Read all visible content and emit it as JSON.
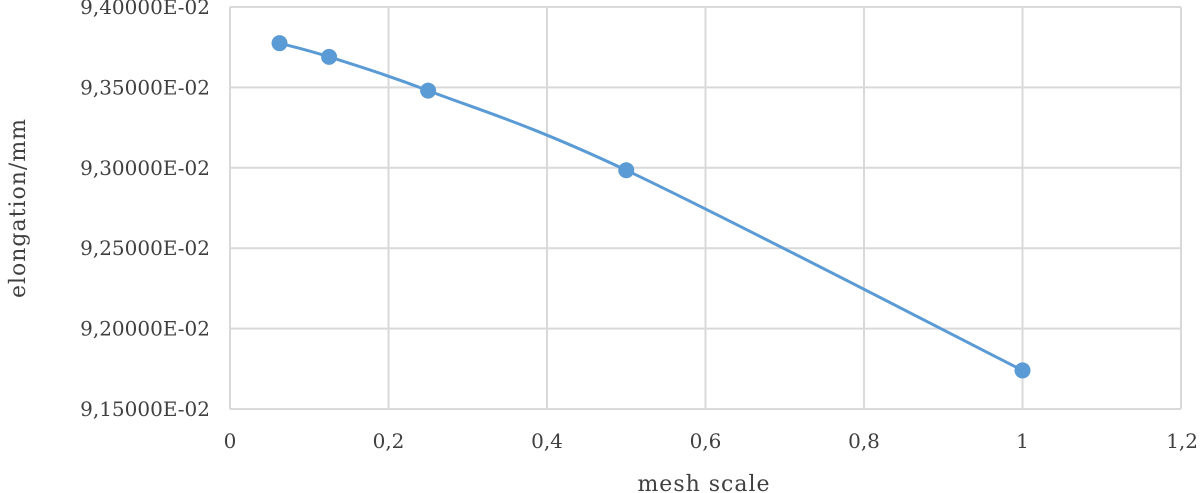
{
  "chart_data": {
    "type": "scatter",
    "title": "",
    "xlabel": "mesh scale",
    "ylabel": "elongation/mm",
    "xlim": [
      0,
      1.2
    ],
    "ylim": [
      0.0915,
      0.094
    ],
    "x_ticks": [
      0,
      0.2,
      0.4,
      0.6,
      0.8,
      1,
      1.2
    ],
    "x_tick_labels": [
      "0",
      "0,2",
      "0,4",
      "0,6",
      "0,8",
      "1",
      "1,2"
    ],
    "y_ticks": [
      0.0915,
      0.092,
      0.0925,
      0.093,
      0.0935,
      0.094
    ],
    "y_tick_labels": [
      "9,15000E-02",
      "9,20000E-02",
      "9,25000E-02",
      "9,30000E-02",
      "9,35000E-02",
      "9,40000E-02"
    ],
    "grid": true,
    "smooth_line": true,
    "markers": true,
    "series": [
      {
        "color": "#5b9bd5",
        "x": [
          0.0625,
          0.125,
          0.25,
          0.5,
          1.0
        ],
        "y": [
          0.093775,
          0.09369,
          0.09348,
          0.092985,
          0.09174
        ]
      }
    ]
  }
}
